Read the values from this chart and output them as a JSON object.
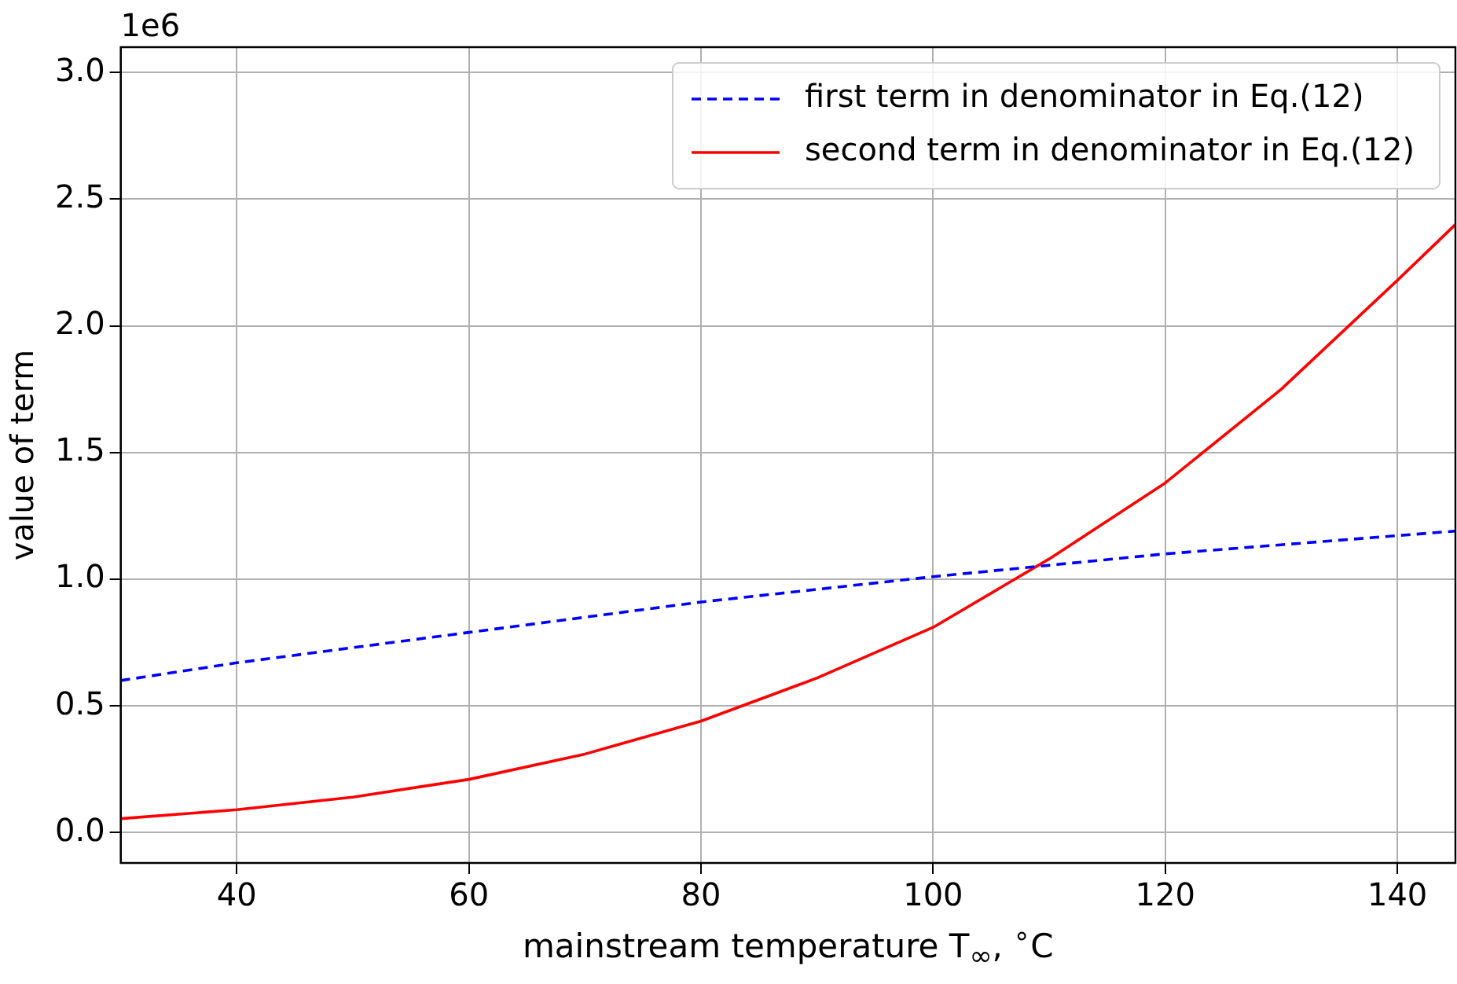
{
  "chart_data": {
    "type": "line",
    "xlabel": "mainstream temperature T$_{∞}$, $^{∘}$C",
    "ylabel": "value of term",
    "annotations": [
      "1e6"
    ],
    "xlim": [
      30,
      145
    ],
    "xticks": [
      40,
      60,
      80,
      100,
      120,
      140
    ],
    "ylim": [
      -0.12,
      3.1
    ],
    "yticks": [
      {
        "value": 0,
        "label": "0.0"
      },
      0.5,
      {
        "value": 1,
        "label": "1.0"
      },
      1.5,
      {
        "value": 2,
        "label": "2.0"
      },
      2.5,
      {
        "value": 3,
        "label": "3.0"
      }
    ],
    "grid": true,
    "legend": "top right",
    "marker": "none",
    "series": [
      {
        "name": "first term in denominator in Eq.(12)",
        "color": "#0000ff",
        "line_style": "dashed",
        "x": [
          30,
          40,
          60,
          80,
          100,
          120,
          145
        ],
        "values": [
          0.6,
          0.67,
          0.79,
          0.91,
          1.01,
          1.1,
          1.19
        ]
      },
      {
        "name": "second term in denominator in Eq.(12)",
        "color": "#ff0000",
        "line_style": "solid",
        "x": [
          30,
          40,
          50,
          60,
          70,
          80,
          90,
          100,
          110,
          120,
          130,
          140,
          145
        ],
        "values": [
          0.055,
          0.09,
          0.14,
          0.21,
          0.31,
          0.44,
          0.61,
          0.81,
          1.08,
          1.38,
          1.75,
          2.18,
          2.4
        ]
      }
    ]
  }
}
